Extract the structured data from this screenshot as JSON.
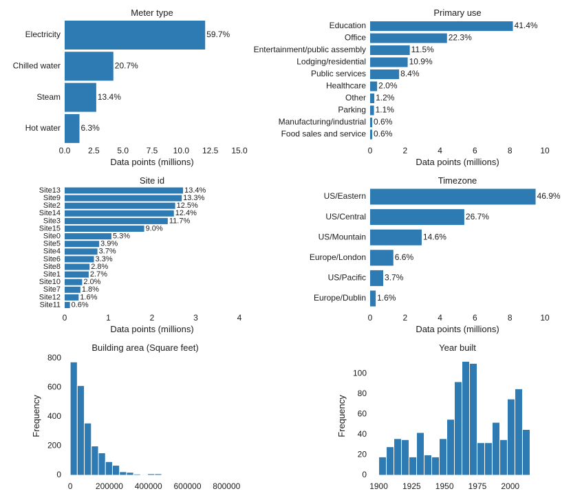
{
  "colors": {
    "bar": "#2e7ab2",
    "hist_edge": "#ffffff"
  },
  "chart_data": [
    {
      "type": "bar",
      "orientation": "horizontal",
      "title": "Meter type",
      "xlabel": "Data points (millions)",
      "categories": [
        "Electricity",
        "Chilled water",
        "Steam",
        "Hot water"
      ],
      "values": [
        12.06,
        4.18,
        2.71,
        1.27
      ],
      "labels": [
        "59.7%",
        "20.7%",
        "13.4%",
        "6.3%"
      ],
      "xlim": [
        0,
        15
      ],
      "xticks": [
        0,
        2.5,
        5,
        7.5,
        10,
        12.5,
        15
      ],
      "xtick_labels": [
        "0.0",
        "2.5",
        "5.0",
        "7.5",
        "10.0",
        "12.5",
        "15.0"
      ]
    },
    {
      "type": "bar",
      "orientation": "horizontal",
      "title": "Primary use",
      "xlabel": "Data points (millions)",
      "categories": [
        "Education",
        "Office",
        "Entertainment/public assembly",
        "Lodging/residential",
        "Public services",
        "Healthcare",
        "Other",
        "Parking",
        "Manufacturing/industrial",
        "Food sales and service"
      ],
      "values": [
        8.17,
        4.4,
        2.27,
        2.15,
        1.66,
        0.4,
        0.24,
        0.22,
        0.12,
        0.12
      ],
      "labels": [
        "41.4%",
        "22.3%",
        "11.5%",
        "10.9%",
        "8.4%",
        "2.0%",
        "1.2%",
        "1.1%",
        "0.6%",
        "0.6%"
      ],
      "xlim": [
        0,
        10
      ],
      "xticks": [
        0,
        2,
        4,
        6,
        8,
        10
      ],
      "xtick_labels": [
        "0",
        "2",
        "4",
        "6",
        "8",
        "10"
      ]
    },
    {
      "type": "bar",
      "orientation": "horizontal",
      "title": "Site id",
      "xlabel": "Data points (millions)",
      "categories": [
        "Site13",
        "Site9",
        "Site2",
        "Site14",
        "Site3",
        "Site15",
        "Site0",
        "Site5",
        "Site4",
        "Site6",
        "Site8",
        "Site1",
        "Site10",
        "Site7",
        "Site12",
        "Site11"
      ],
      "values": [
        2.71,
        2.68,
        2.53,
        2.5,
        2.36,
        1.82,
        1.07,
        0.79,
        0.75,
        0.67,
        0.57,
        0.55,
        0.4,
        0.36,
        0.32,
        0.12
      ],
      "labels": [
        "13.4%",
        "13.3%",
        "12.5%",
        "12.4%",
        "11.7%",
        "9.0%",
        "5.3%",
        "3.9%",
        "3.7%",
        "3.3%",
        "2.8%",
        "2.7%",
        "2.0%",
        "1.8%",
        "1.6%",
        "0.6%"
      ],
      "xlim": [
        0,
        4
      ],
      "xticks": [
        0,
        1,
        2,
        3,
        4
      ],
      "xtick_labels": [
        "0",
        "1",
        "2",
        "3",
        "4"
      ]
    },
    {
      "type": "bar",
      "orientation": "horizontal",
      "title": "Timezone",
      "xlabel": "Data points (millions)",
      "categories": [
        "US/Eastern",
        "US/Central",
        "US/Mountain",
        "Europe/London",
        "US/Pacific",
        "Europe/Dublin"
      ],
      "values": [
        9.47,
        5.39,
        2.95,
        1.33,
        0.75,
        0.32
      ],
      "labels": [
        "46.9%",
        "26.7%",
        "14.6%",
        "6.6%",
        "3.7%",
        "1.6%"
      ],
      "xlim": [
        0,
        10
      ],
      "xticks": [
        0,
        2,
        4,
        6,
        8,
        10
      ],
      "xtick_labels": [
        "0",
        "2",
        "4",
        "6",
        "8",
        "10"
      ]
    },
    {
      "type": "histogram",
      "title": "Building area (Square feet)",
      "ylabel": "Frequency",
      "bin_start": 0,
      "bin_width": 36000,
      "counts": [
        775,
        613,
        357,
        200,
        153,
        93,
        68,
        24,
        20,
        8,
        5,
        10,
        10,
        2,
        1,
        1,
        2,
        3,
        1,
        0,
        0,
        1
      ],
      "xlim": [
        -18000,
        820000
      ],
      "ylim": [
        0,
        800
      ],
      "xticks": [
        0,
        200000,
        400000,
        600000,
        800000
      ],
      "xtick_labels": [
        "0",
        "200000",
        "400000",
        "600000",
        "800000"
      ],
      "yticks": [
        0,
        200,
        400,
        600,
        800
      ],
      "ytick_labels": [
        "0",
        "200",
        "400",
        "600",
        "800"
      ]
    },
    {
      "type": "histogram",
      "title": "Year built",
      "ylabel": "Frequency",
      "bin_start": 1900,
      "bin_width": 5.75,
      "counts": [
        18,
        28,
        36,
        35,
        18,
        42,
        20,
        18,
        36,
        55,
        92,
        112,
        110,
        32,
        32,
        52,
        35,
        75,
        85,
        45
      ],
      "xlim": [
        1895,
        2020
      ],
      "ylim": [
        0,
        115
      ],
      "xticks": [
        1900,
        1925,
        1950,
        1975,
        2000
      ],
      "xtick_labels": [
        "1900",
        "1925",
        "1950",
        "1975",
        "2000"
      ],
      "yticks": [
        0,
        20,
        40,
        60,
        80,
        100
      ],
      "ytick_labels": [
        "0",
        "20",
        "40",
        "60",
        "80",
        "100"
      ]
    }
  ]
}
